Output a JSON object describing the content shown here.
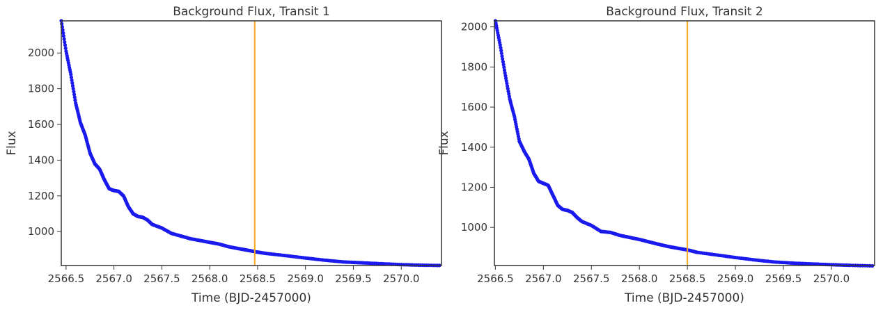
{
  "chart_data": [
    {
      "type": "scatter",
      "title": "Background Flux, Transit 1",
      "xlabel": "Time (BJD-2457000)",
      "ylabel": "Flux",
      "xlim": [
        2566.45,
        2570.42
      ],
      "ylim": [
        810,
        2180
      ],
      "xticks": [
        2566.5,
        2567.0,
        2567.5,
        2568.0,
        2568.5,
        2569.0,
        2569.5,
        2570.0
      ],
      "xtick_labels": [
        "2566.5",
        "2567.0",
        "2567.5",
        "2568.0",
        "2568.5",
        "2569.0",
        "2569.5",
        "2570.0"
      ],
      "yticks": [
        1000,
        1200,
        1400,
        1600,
        1800,
        2000
      ],
      "ytick_labels": [
        "1000",
        "1200",
        "1400",
        "1600",
        "1800",
        "2000"
      ],
      "grid": false,
      "marker_color": "#1a1aee",
      "vline": {
        "x": 2568.47,
        "color": "#f5a623"
      },
      "series": [
        {
          "x": [
            2566.45,
            2566.5,
            2566.55,
            2566.6,
            2566.65,
            2566.7,
            2566.75,
            2566.8,
            2566.85,
            2566.9,
            2566.95,
            2567.0,
            2567.05,
            2567.1,
            2567.15,
            2567.2,
            2567.25,
            2567.3,
            2567.35,
            2567.4,
            2567.5,
            2567.6,
            2567.7,
            2567.8,
            2567.9,
            2568.0,
            2568.1,
            2568.2,
            2568.3,
            2568.4,
            2568.5,
            2568.6,
            2568.8,
            2569.0,
            2569.2,
            2569.4,
            2569.6,
            2569.8,
            2570.0,
            2570.2,
            2570.42
          ],
          "y": [
            2180,
            2010,
            1880,
            1720,
            1610,
            1540,
            1440,
            1380,
            1350,
            1290,
            1240,
            1230,
            1225,
            1200,
            1140,
            1100,
            1085,
            1080,
            1065,
            1040,
            1020,
            990,
            975,
            960,
            950,
            940,
            930,
            915,
            905,
            895,
            885,
            877,
            865,
            852,
            840,
            830,
            825,
            820,
            815,
            812,
            810
          ]
        }
      ]
    },
    {
      "type": "scatter",
      "title": "Background Flux, Transit 2",
      "xlabel": "Time (BJD-2457000)",
      "ylabel": "Flux",
      "xlim": [
        2566.49,
        2570.45
      ],
      "ylim": [
        810,
        2030
      ],
      "xticks": [
        2566.5,
        2567.0,
        2567.5,
        2568.0,
        2568.5,
        2569.0,
        2569.5,
        2570.0
      ],
      "xtick_labels": [
        "2566.5",
        "2567.0",
        "2567.5",
        "2568.0",
        "2568.5",
        "2569.0",
        "2569.5",
        "2570.0"
      ],
      "yticks": [
        1000,
        1200,
        1400,
        1600,
        1800,
        2000
      ],
      "ytick_labels": [
        "1000",
        "1200",
        "1400",
        "1600",
        "1800",
        "2000"
      ],
      "grid": false,
      "marker_color": "#1a1aee",
      "vline": {
        "x": 2568.5,
        "color": "#f5a623"
      },
      "series": [
        {
          "x": [
            2566.5,
            2566.55,
            2566.6,
            2566.65,
            2566.7,
            2566.75,
            2566.8,
            2566.85,
            2566.9,
            2566.95,
            2567.0,
            2567.05,
            2567.1,
            2567.15,
            2567.2,
            2567.25,
            2567.3,
            2567.35,
            2567.4,
            2567.5,
            2567.6,
            2567.7,
            2567.8,
            2567.9,
            2568.0,
            2568.1,
            2568.2,
            2568.3,
            2568.4,
            2568.5,
            2568.6,
            2568.8,
            2569.0,
            2569.2,
            2569.4,
            2569.6,
            2569.8,
            2570.0,
            2570.2,
            2570.45
          ],
          "y": [
            2030,
            1910,
            1770,
            1640,
            1550,
            1430,
            1380,
            1340,
            1270,
            1230,
            1220,
            1210,
            1160,
            1110,
            1090,
            1085,
            1075,
            1050,
            1030,
            1010,
            980,
            975,
            960,
            950,
            940,
            928,
            916,
            905,
            896,
            888,
            876,
            863,
            850,
            838,
            828,
            822,
            818,
            814,
            811,
            808
          ]
        }
      ]
    }
  ]
}
